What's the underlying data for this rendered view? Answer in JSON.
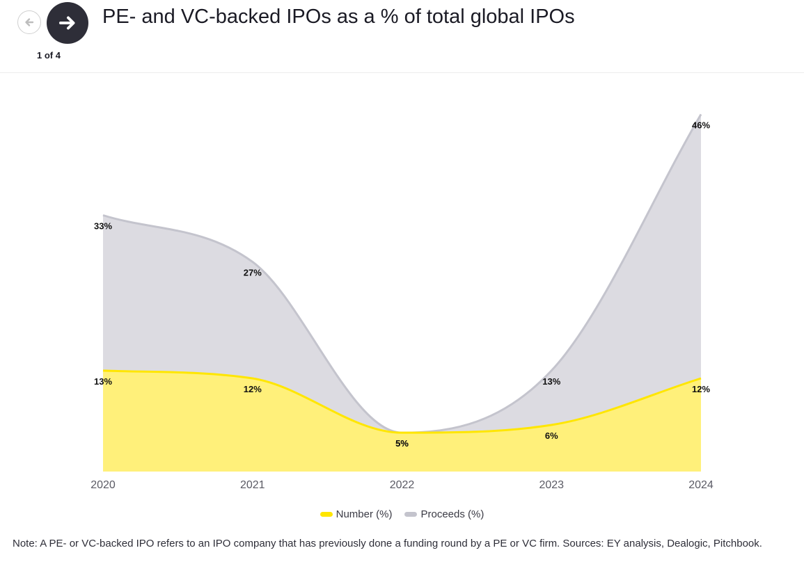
{
  "header": {
    "title": "PE- and VC-backed IPOs as a % of total global IPOs",
    "page_indicator": "1 of 4",
    "prev_icon": "arrow-left-icon",
    "next_icon": "arrow-right-icon"
  },
  "chart_data": {
    "type": "area",
    "title": "PE- and VC-backed IPOs as a % of total global IPOs",
    "categories": [
      "2020",
      "2021",
      "2022",
      "2023",
      "2024"
    ],
    "series": [
      {
        "name": "Proceeds (%)",
        "values": [
          33,
          27,
          5,
          13,
          46
        ],
        "labels": [
          "33%",
          "27%",
          "5%",
          "13%",
          "46%"
        ],
        "color": "#c4c4cd"
      },
      {
        "name": "Number (%)",
        "values": [
          13,
          12,
          5,
          6,
          12
        ],
        "labels": [
          "13%",
          "12%",
          "5%",
          "6%",
          "12%"
        ],
        "color": "#ffe600"
      }
    ],
    "ylim": [
      0,
      48
    ],
    "grid": false,
    "legend": "bottom-center"
  },
  "legend": [
    {
      "label": "Number (%)",
      "color": "#ffe600"
    },
    {
      "label": "Proceeds (%)",
      "color": "#c4c4cd"
    }
  ],
  "note": "Note: A PE- or VC-backed IPO refers to an IPO company that has previously done a funding round by a PE or VC firm. Sources: EY analysis, Dealogic, Pitchbook."
}
